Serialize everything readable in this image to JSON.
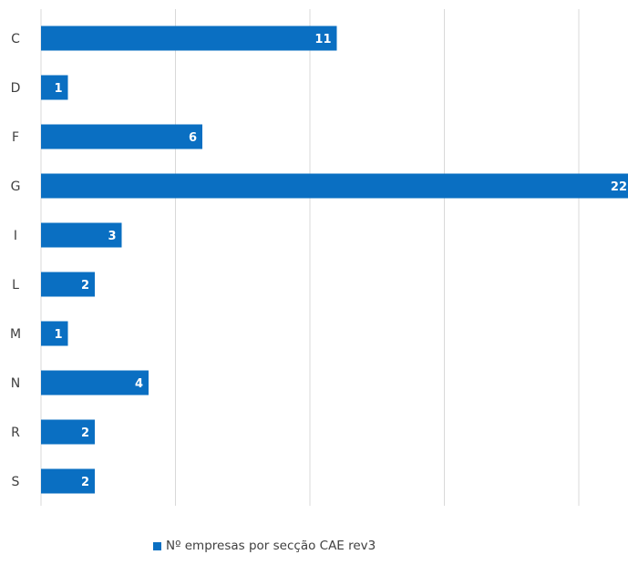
{
  "chart_data": {
    "type": "bar",
    "orientation": "horizontal",
    "categories": [
      "C",
      "D",
      "F",
      "G",
      "I",
      "L",
      "M",
      "N",
      "R",
      "S"
    ],
    "values": [
      11,
      1,
      6,
      22,
      3,
      2,
      1,
      4,
      2,
      2
    ],
    "series": [
      {
        "name": "Nº empresas por secção CAE rev3",
        "values": [
          11,
          1,
          6,
          22,
          3,
          2,
          1,
          4,
          2,
          2
        ]
      }
    ],
    "xlim": [
      0,
      22
    ],
    "grid": true,
    "legend": "bottom",
    "bar_color": "#0a6fc2",
    "grid_color": "#d9d9d9"
  },
  "legend": {
    "label": "Nº empresas por secção CAE rev3"
  }
}
